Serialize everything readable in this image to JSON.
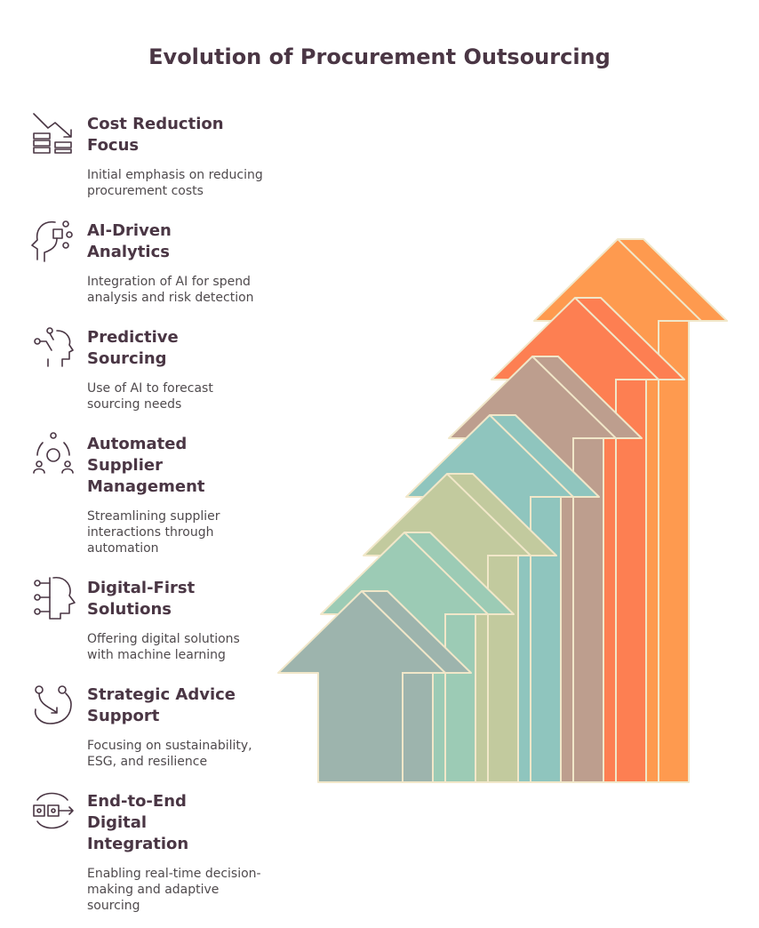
{
  "header": {
    "title": "Evolution of Procurement Outsourcing"
  },
  "items": [
    {
      "title_lines": [
        "Cost Reduction",
        "Focus"
      ],
      "description_lines": [
        "Initial emphasis on reducing",
        "procurement costs"
      ]
    },
    {
      "title_lines": [
        "AI-Driven",
        "Analytics"
      ],
      "description_lines": [
        "Integration of AI for spend",
        "analysis and risk detection"
      ]
    },
    {
      "title_lines": [
        "Predictive",
        "Sourcing"
      ],
      "description_lines": [
        "Use of AI to forecast",
        "sourcing needs"
      ]
    },
    {
      "title_lines": [
        "Automated",
        "Supplier",
        "Management"
      ],
      "description_lines": [
        "Streamlining supplier",
        "interactions through",
        "automation"
      ]
    },
    {
      "title_lines": [
        "Digital-First",
        "Solutions"
      ],
      "description_lines": [
        "Offering digital solutions",
        "with machine learning"
      ]
    },
    {
      "title_lines": [
        "Strategic Advice",
        "Support"
      ],
      "description_lines": [
        "Focusing on sustainability,",
        "ESG, and resilience"
      ]
    },
    {
      "title_lines": [
        "End-to-End",
        "Digital",
        "Integration"
      ],
      "description_lines": [
        "Enabling real-time decision-",
        "making and adaptive",
        "sourcing"
      ]
    }
  ]
}
